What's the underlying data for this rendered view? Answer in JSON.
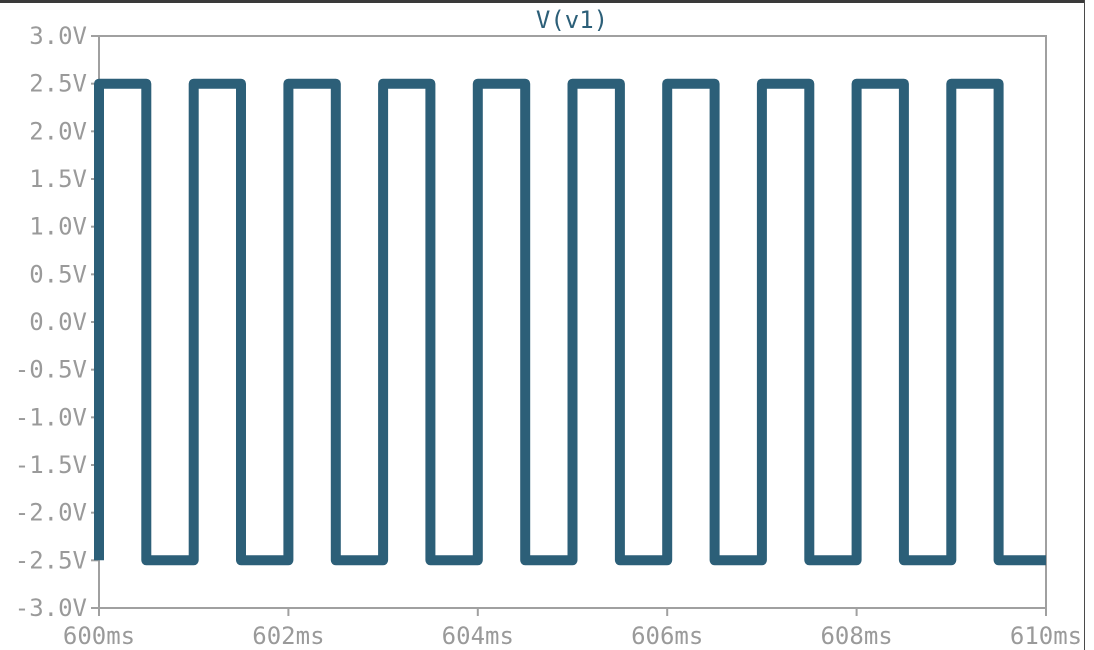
{
  "chart_data": {
    "type": "line",
    "title": "V(v1)",
    "xlabel": "",
    "ylabel": "",
    "x_ticks": [
      "600ms",
      "602ms",
      "604ms",
      "606ms",
      "608ms",
      "610ms"
    ],
    "y_ticks": [
      "3.0V",
      "2.5V",
      "2.0V",
      "1.5V",
      "1.0V",
      "0.5V",
      "0.0V",
      "-0.5V",
      "-1.0V",
      "-1.5V",
      "-2.0V",
      "-2.5V",
      "-3.0V"
    ],
    "xlim": [
      600,
      610
    ],
    "ylim": [
      -3.0,
      3.0
    ],
    "x_unit": "ms",
    "y_unit": "V",
    "series": [
      {
        "name": "V(v1)",
        "color": "#2c5f78",
        "x": [
          600.0,
          600.0,
          600.1,
          600.5,
          600.5,
          601.0,
          601.0,
          601.5,
          601.5,
          602.0,
          602.0,
          602.5,
          602.5,
          603.0,
          603.0,
          603.5,
          603.5,
          604.0,
          604.0,
          604.5,
          604.5,
          605.0,
          605.0,
          605.5,
          605.5,
          606.0,
          606.0,
          606.5,
          606.5,
          607.0,
          607.0,
          607.5,
          607.5,
          608.0,
          608.0,
          608.5,
          608.5,
          609.0,
          609.0,
          609.5,
          609.5,
          610.0
        ],
        "y": [
          -2.5,
          2.5,
          2.5,
          2.5,
          -2.5,
          -2.5,
          2.5,
          2.5,
          -2.5,
          -2.5,
          2.5,
          2.5,
          -2.5,
          -2.5,
          2.5,
          2.5,
          -2.5,
          -2.5,
          2.5,
          2.5,
          -2.5,
          -2.5,
          2.5,
          2.5,
          -2.5,
          -2.5,
          2.5,
          2.5,
          -2.5,
          -2.5,
          2.5,
          2.5,
          -2.5,
          -2.5,
          2.5,
          2.5,
          -2.5,
          -2.5,
          2.5,
          2.5,
          -2.5,
          -2.5
        ]
      }
    ],
    "grid": false,
    "colors": {
      "axis": "#a0a0a0",
      "tick_text": "#9a9a9a",
      "trace": "#2c5f78",
      "background": "#ffffff"
    }
  }
}
